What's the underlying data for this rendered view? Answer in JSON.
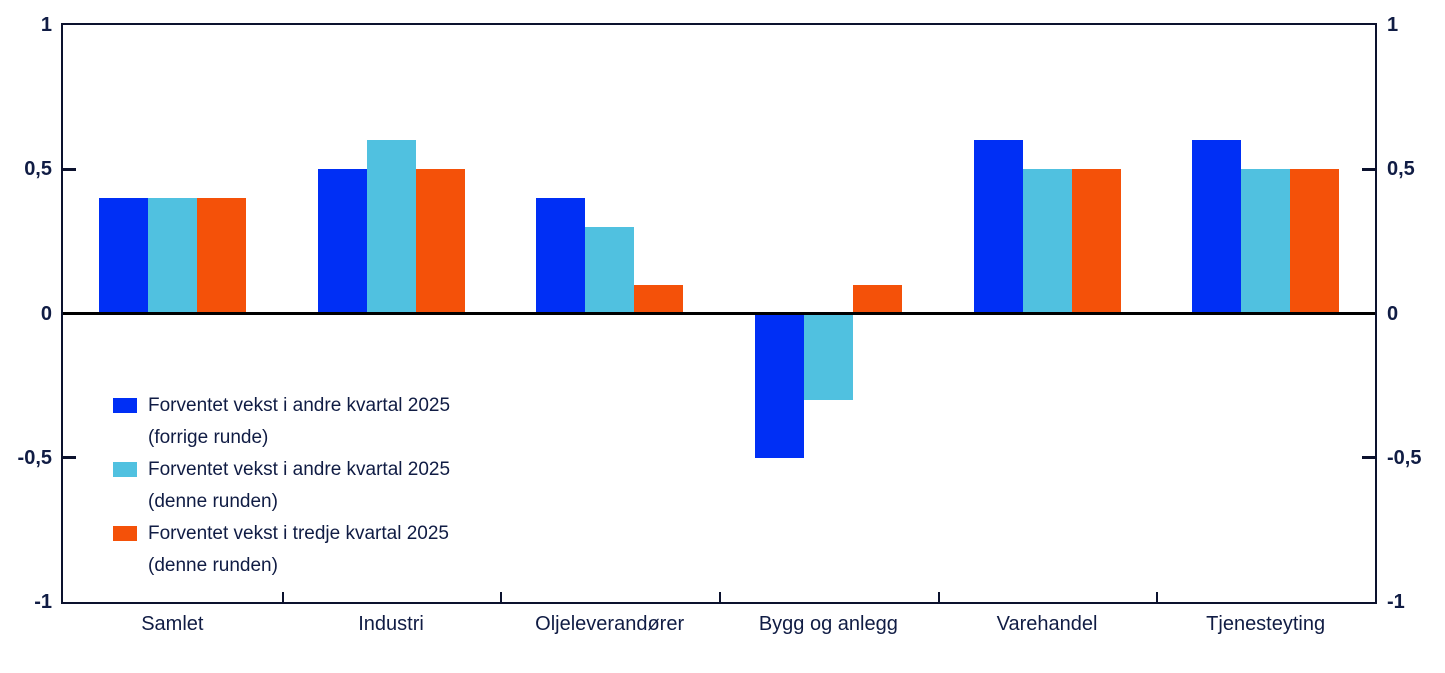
{
  "chart_data": {
    "type": "bar",
    "categories": [
      "Samlet",
      "Industri",
      "Oljeleverandører",
      "Bygg og anlegg",
      "Varehandel",
      "Tjenesteyting"
    ],
    "series": [
      {
        "name": "Forventet vekst i andre kvartal 2025 (forrige runde)",
        "color": "#002ff5",
        "values": [
          0.4,
          0.5,
          0.4,
          -0.5,
          0.6,
          0.6
        ]
      },
      {
        "name": "Forventet vekst i andre kvartal 2025 (denne runden)",
        "color": "#50c1e0",
        "values": [
          0.4,
          0.6,
          0.3,
          -0.3,
          0.5,
          0.5
        ]
      },
      {
        "name": "Forventet vekst i tredje kvartal 2025 (denne runden)",
        "color": "#f45109",
        "values": [
          0.4,
          0.5,
          0.1,
          0.1,
          0.5,
          0.5
        ]
      }
    ],
    "title": "",
    "xlabel": "",
    "ylabel": "",
    "ylim": [
      -1,
      1
    ],
    "grid": false,
    "decimal_separator": ",",
    "yticks": [
      {
        "label": "1",
        "value": 1
      },
      {
        "label": "0,5",
        "value": 0.5
      },
      {
        "label": "0",
        "value": 0
      },
      {
        "label": "-0,5",
        "value": -0.5
      },
      {
        "label": "-1",
        "value": -1
      }
    ],
    "legend_position": "inside-middle-left",
    "legend": [
      {
        "line1": "Forventet vekst i andre kvartal 2025",
        "line2": "(forrige runde)"
      },
      {
        "line1": "Forventet vekst i andre kvartal 2025",
        "line2": "(denne runden)"
      },
      {
        "line1": "Forventet vekst i tredje kvartal 2025",
        "line2": "(denne runden)"
      }
    ]
  },
  "colors": {
    "axis_text": "#101c44",
    "frame": "#0c122e",
    "zero_line": "#000000",
    "background": "#ffffff"
  }
}
